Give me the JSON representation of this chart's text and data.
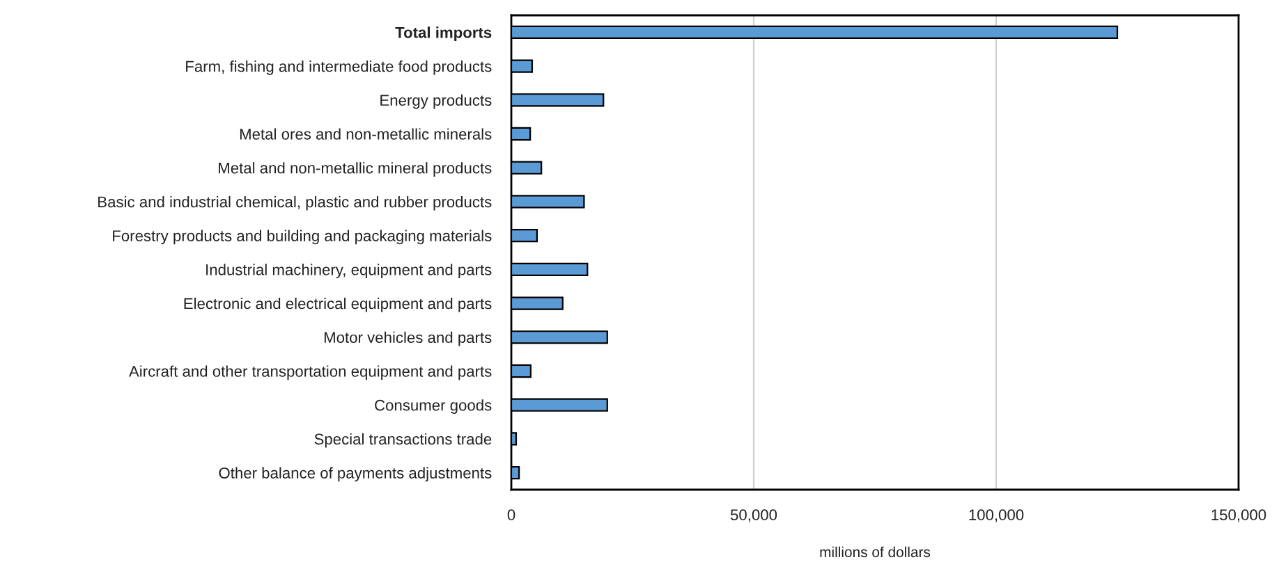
{
  "chart_data": {
    "type": "bar",
    "orientation": "horizontal",
    "xlabel": "millions of dollars",
    "categories": [
      "Total imports",
      "Farm, fishing and intermediate food products",
      "Energy products",
      "Metal ores and non-metallic minerals",
      "Metal and non-metallic mineral products",
      "Basic and industrial chemical, plastic and rubber products",
      "Forestry products and building and packaging materials",
      "Industrial machinery, equipment and parts",
      "Electronic and electrical equipment and parts",
      "Motor vehicles and parts",
      "Aircraft and other transportation equipment and parts",
      "Consumer goods",
      "Special transactions trade",
      "Other balance of payments adjustments"
    ],
    "values": [
      125000,
      4300,
      19000,
      3900,
      6200,
      15000,
      5300,
      15700,
      10600,
      19800,
      4000,
      19800,
      1000,
      1600
    ],
    "color": "#5b9bd5",
    "xlim": [
      0,
      150000
    ],
    "xticks": [
      0,
      {
        "value": 50000,
        "label": "50,000"
      },
      {
        "value": 100000,
        "label": "100,000"
      },
      {
        "value": 150000,
        "label": "150,000"
      }
    ],
    "grid": "x"
  }
}
